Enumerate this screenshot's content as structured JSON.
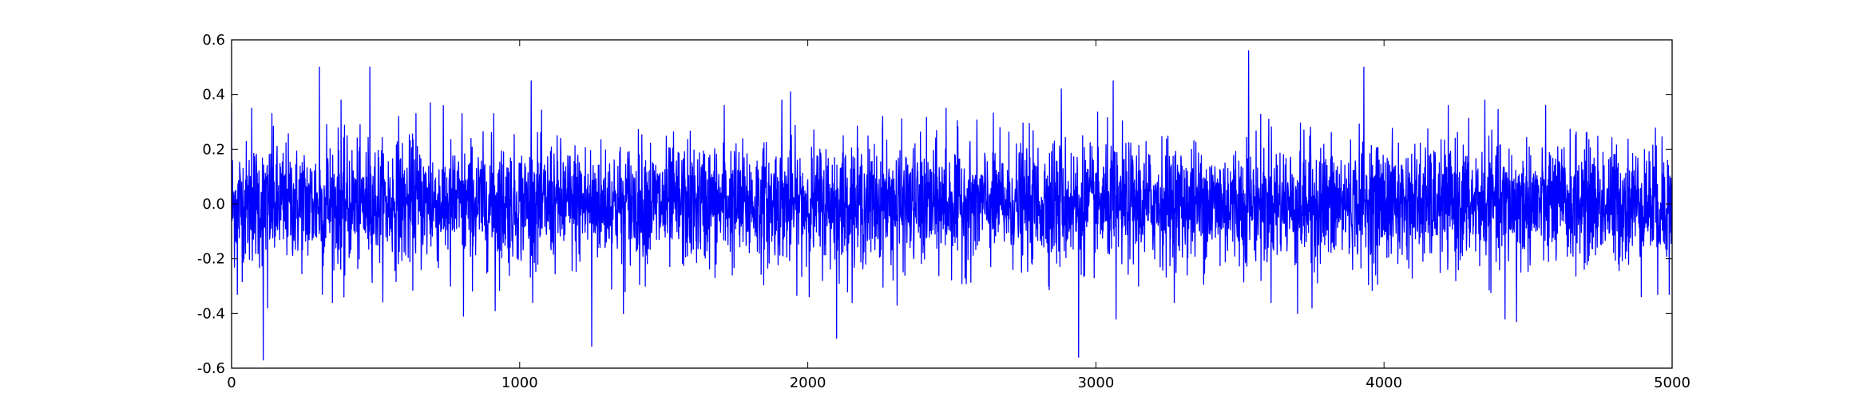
{
  "chart_data": {
    "type": "line",
    "title": "",
    "xlabel": "",
    "ylabel": "",
    "xlim": [
      0,
      5000
    ],
    "ylim": [
      -0.6,
      0.6
    ],
    "xticks": [
      0,
      1000,
      2000,
      3000,
      4000,
      5000
    ],
    "xtick_labels": [
      "0",
      "1000",
      "2000",
      "3000",
      "4000",
      "5000"
    ],
    "yticks": [
      -0.6,
      -0.4,
      -0.2,
      0.0,
      0.2,
      0.4,
      0.6
    ],
    "ytick_labels": [
      "-0.6",
      "-0.4",
      "-0.2",
      "0.0",
      "0.2",
      "0.4",
      "0.6"
    ],
    "grid": false,
    "legend": false,
    "series_color": "#0000ff",
    "series": [
      {
        "n_points": 5000,
        "x_start": 0,
        "x_step": 1,
        "baseline_std": 0.11,
        "peaks": [
          {
            "x": 0,
            "y": 0.37
          },
          {
            "x": 20,
            "y": -0.33
          },
          {
            "x": 70,
            "y": 0.35
          },
          {
            "x": 110,
            "y": -0.57
          },
          {
            "x": 125,
            "y": -0.38
          },
          {
            "x": 140,
            "y": 0.33
          },
          {
            "x": 305,
            "y": 0.5
          },
          {
            "x": 315,
            "y": -0.33
          },
          {
            "x": 330,
            "y": 0.29
          },
          {
            "x": 380,
            "y": 0.38
          },
          {
            "x": 390,
            "y": -0.34
          },
          {
            "x": 480,
            "y": 0.5
          },
          {
            "x": 580,
            "y": 0.32
          },
          {
            "x": 640,
            "y": 0.33
          },
          {
            "x": 690,
            "y": 0.37
          },
          {
            "x": 760,
            "y": -0.3
          },
          {
            "x": 800,
            "y": 0.33
          },
          {
            "x": 805,
            "y": -0.41
          },
          {
            "x": 910,
            "y": 0.33
          },
          {
            "x": 915,
            "y": -0.39
          },
          {
            "x": 1040,
            "y": 0.45
          },
          {
            "x": 1250,
            "y": -0.52
          },
          {
            "x": 1360,
            "y": -0.4
          },
          {
            "x": 1710,
            "y": 0.36
          },
          {
            "x": 1910,
            "y": 0.38
          },
          {
            "x": 1940,
            "y": 0.41
          },
          {
            "x": 2100,
            "y": -0.49
          },
          {
            "x": 2260,
            "y": 0.32
          },
          {
            "x": 2310,
            "y": -0.37
          },
          {
            "x": 2480,
            "y": 0.35
          },
          {
            "x": 2880,
            "y": 0.42
          },
          {
            "x": 2940,
            "y": -0.56
          },
          {
            "x": 3060,
            "y": 0.45
          },
          {
            "x": 3070,
            "y": -0.42
          },
          {
            "x": 3530,
            "y": 0.56
          },
          {
            "x": 3600,
            "y": 0.31
          },
          {
            "x": 3700,
            "y": -0.4
          },
          {
            "x": 3750,
            "y": -0.38
          },
          {
            "x": 3930,
            "y": 0.5
          },
          {
            "x": 4350,
            "y": 0.38
          },
          {
            "x": 4420,
            "y": -0.42
          },
          {
            "x": 4460,
            "y": -0.43
          },
          {
            "x": 4950,
            "y": -0.33
          },
          {
            "x": 4990,
            "y": -0.33
          }
        ]
      }
    ]
  }
}
